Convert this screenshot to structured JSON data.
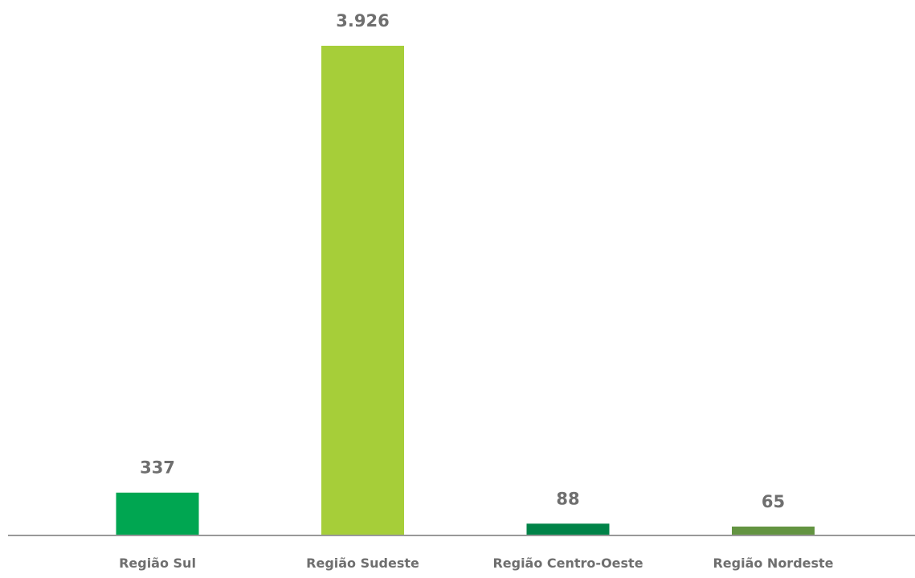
{
  "chart_data": {
    "type": "bar",
    "title": "",
    "xlabel": "",
    "ylabel": "",
    "categories": [
      "Região Sul",
      "Região Sudeste",
      "Região Centro-Oeste",
      "Região Nordeste"
    ],
    "values": [
      337,
      3926,
      88,
      65
    ],
    "value_labels": [
      "337",
      "3.926",
      "88",
      "65"
    ],
    "colors": [
      "#00a651",
      "#a6ce39",
      "#008348",
      "#639441"
    ],
    "axis_color": "#999999",
    "ylim": [
      0,
      4000
    ],
    "grid": false,
    "legend": "none"
  }
}
